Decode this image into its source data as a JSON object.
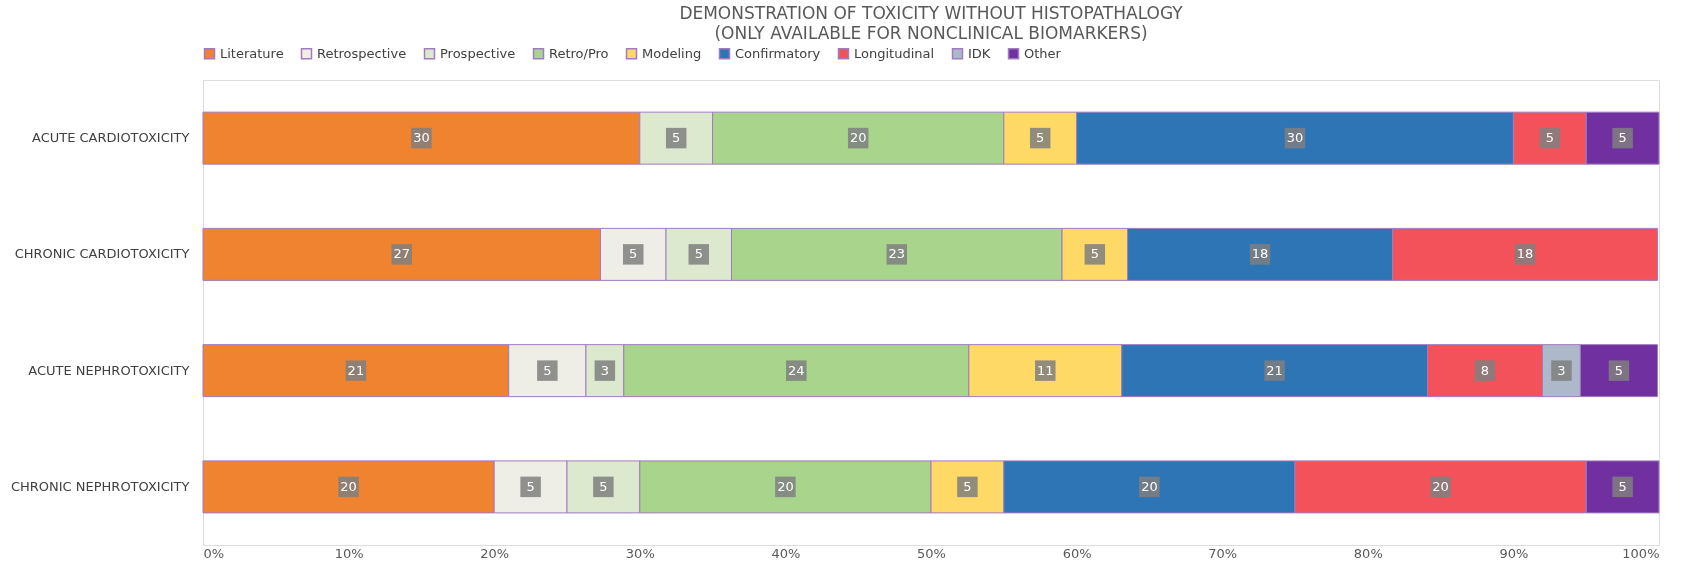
{
  "chart_data": {
    "type": "bar",
    "orientation": "horizontal",
    "stacked": true,
    "title": "DEMONSTRATION OF TOXICITY WITHOUT HISTOPATHALOGY",
    "subtitle": "(ONLY AVAILABLE FOR NONCLINICAL BIOMARKERS)",
    "categories": [
      "ACUTE CARDIOTOXICITY",
      "CHRONIC CARDIOTOXICITY",
      "ACUTE NEPHROTOXICITY",
      "CHRONIC NEPHROTOXICITY"
    ],
    "series": [
      {
        "name": "Literature",
        "color": "#f0832f",
        "values": [
          30,
          27.3,
          21.0,
          20
        ],
        "value_labels": [
          "30",
          "27",
          "21",
          "20"
        ]
      },
      {
        "name": "Retrospective",
        "color": "#eeeee6",
        "values": [
          null,
          4.5,
          5.3,
          5
        ],
        "value_labels": [
          null,
          "5",
          "5",
          "5"
        ]
      },
      {
        "name": "Prospective",
        "color": "#dce9cf",
        "values": [
          5,
          4.5,
          2.6,
          5
        ],
        "value_labels": [
          "5",
          "5",
          "3",
          "5"
        ]
      },
      {
        "name": "Retro/Pro",
        "color": "#a9d48c",
        "values": [
          20,
          22.7,
          23.7,
          20
        ],
        "value_labels": [
          "20",
          "23",
          "24",
          "20"
        ]
      },
      {
        "name": "Modeling",
        "color": "#ffd966",
        "values": [
          5,
          4.5,
          10.5,
          5
        ],
        "value_labels": [
          "5",
          "5",
          "11",
          "5"
        ]
      },
      {
        "name": "Confirmatory",
        "color": "#2e75b6",
        "values": [
          30,
          18.2,
          21.0,
          20
        ],
        "value_labels": [
          "30",
          "18",
          "21",
          "20"
        ]
      },
      {
        "name": "Longitudinal",
        "color": "#f4525a",
        "values": [
          5,
          18.2,
          7.9,
          20
        ],
        "value_labels": [
          "5",
          "18",
          "8",
          "20"
        ]
      },
      {
        "name": "IDK",
        "color": "#adb9ca",
        "values": [
          null,
          null,
          2.6,
          null
        ],
        "value_labels": [
          null,
          null,
          "3",
          null
        ]
      },
      {
        "name": "Other",
        "color": "#7030a0",
        "values": [
          5,
          null,
          5.3,
          5
        ],
        "value_labels": [
          "5",
          null,
          "5",
          "5"
        ]
      }
    ],
    "xlim": [
      0,
      100
    ],
    "xticks": [
      {
        "value": 0,
        "label": "0%"
      },
      {
        "value": 10,
        "label": "10%"
      },
      {
        "value": 20,
        "label": "20%"
      },
      {
        "value": 30,
        "label": "30%"
      },
      {
        "value": 40,
        "label": "40%"
      },
      {
        "value": 50,
        "label": "50%"
      },
      {
        "value": 60,
        "label": "60%"
      },
      {
        "value": 70,
        "label": "70%"
      },
      {
        "value": 80,
        "label": "80%"
      },
      {
        "value": 90,
        "label": "90%"
      },
      {
        "value": 100,
        "label": "100%"
      }
    ],
    "grid": false,
    "legend": "top"
  }
}
